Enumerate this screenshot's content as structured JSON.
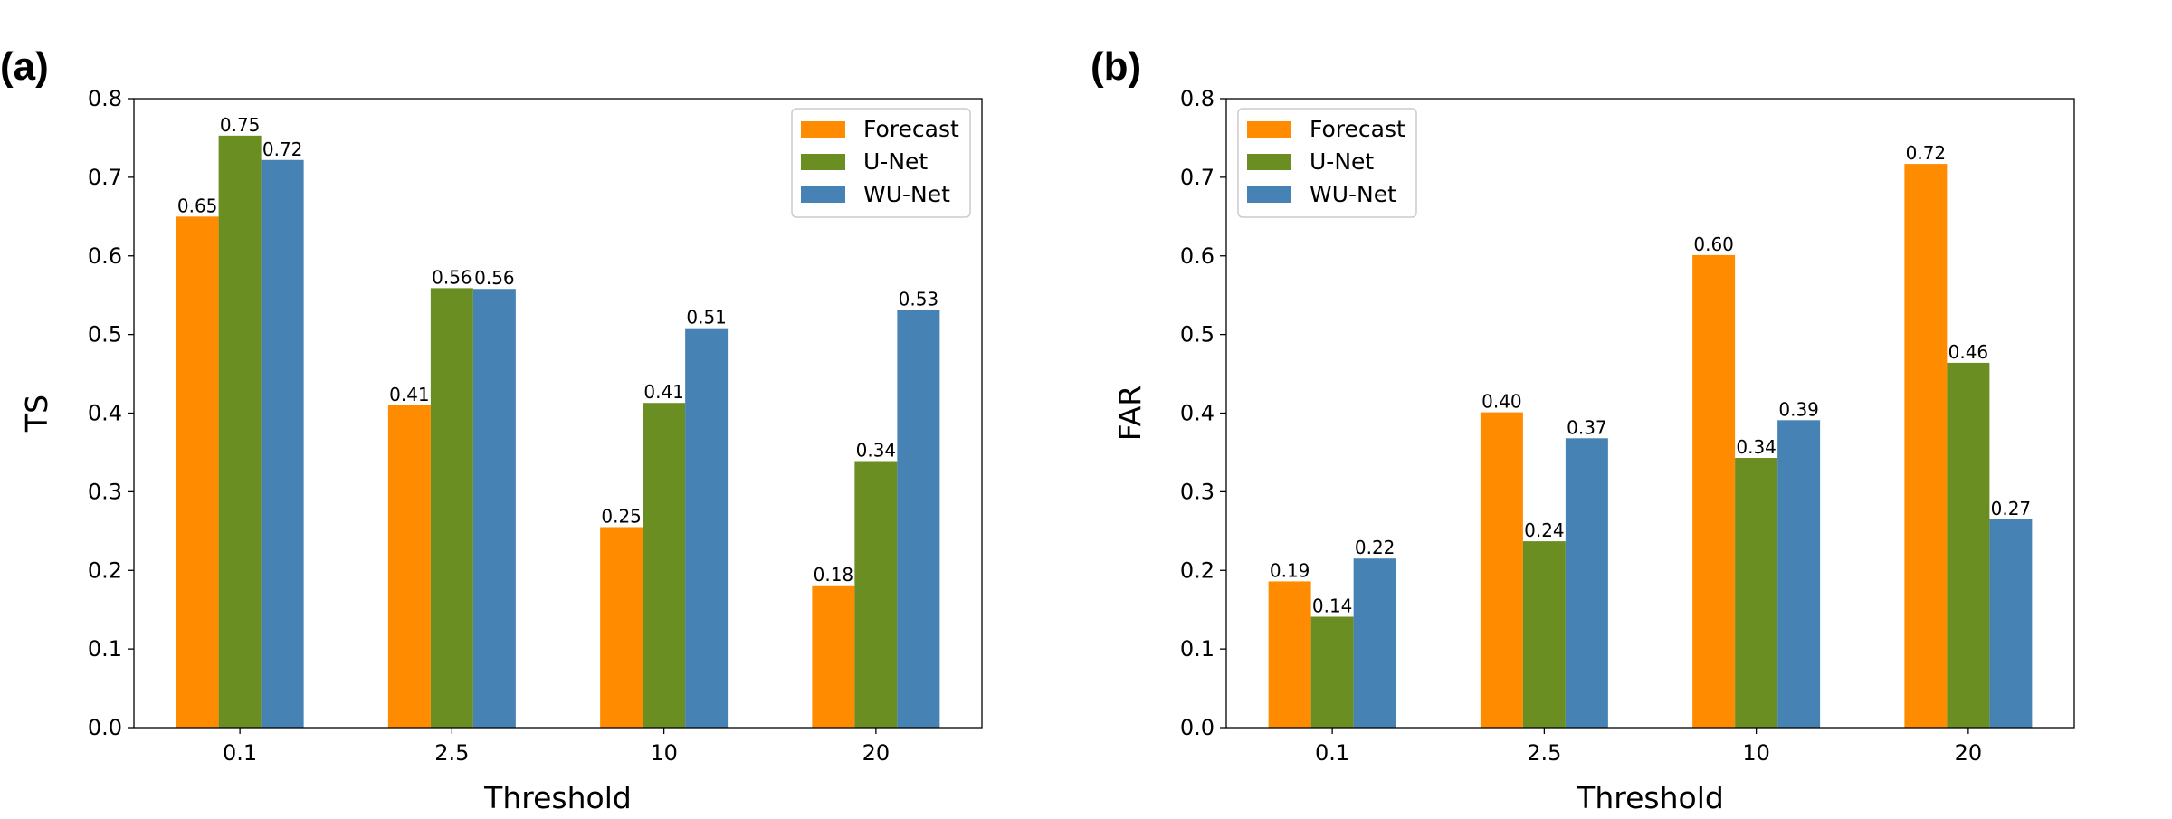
{
  "colors": {
    "Forecast": "#ff8c00",
    "U-Net": "#6b8e23",
    "WU-Net": "#4682b4"
  },
  "chart_data": [
    {
      "type": "bar",
      "panel_label": "(a)",
      "categories": [
        "0.1",
        "2.5",
        "10",
        "20"
      ],
      "series": [
        {
          "name": "Forecast",
          "values": [
            0.65,
            0.41,
            0.255,
            0.181
          ],
          "labels": [
            "0.65",
            "0.41",
            "0.25",
            "0.18"
          ]
        },
        {
          "name": "U-Net",
          "values": [
            0.753,
            0.559,
            0.413,
            0.339
          ],
          "labels": [
            "0.75",
            "0.56",
            "0.41",
            "0.34"
          ]
        },
        {
          "name": "WU-Net",
          "values": [
            0.722,
            0.558,
            0.508,
            0.531
          ],
          "labels": [
            "0.72",
            "0.56",
            "0.51",
            "0.53"
          ]
        }
      ],
      "xlabel": "Threshold",
      "ylabel": "TS",
      "ylim": [
        0,
        0.8
      ],
      "yticks": [
        "0.0",
        "0.1",
        "0.2",
        "0.3",
        "0.4",
        "0.5",
        "0.6",
        "0.7",
        "0.8"
      ],
      "legend_position": "upper right"
    },
    {
      "type": "bar",
      "panel_label": "(b)",
      "categories": [
        "0.1",
        "2.5",
        "10",
        "20"
      ],
      "series": [
        {
          "name": "Forecast",
          "values": [
            0.186,
            0.401,
            0.601,
            0.717
          ],
          "labels": [
            "0.19",
            "0.40",
            "0.60",
            "0.72"
          ]
        },
        {
          "name": "U-Net",
          "values": [
            0.141,
            0.237,
            0.343,
            0.464
          ],
          "labels": [
            "0.14",
            "0.24",
            "0.34",
            "0.46"
          ]
        },
        {
          "name": "WU-Net",
          "values": [
            0.215,
            0.368,
            0.391,
            0.265
          ],
          "labels": [
            "0.22",
            "0.37",
            "0.39",
            "0.27"
          ]
        }
      ],
      "xlabel": "Threshold",
      "ylabel": "FAR",
      "ylim": [
        0,
        0.8
      ],
      "yticks": [
        "0.0",
        "0.1",
        "0.2",
        "0.3",
        "0.4",
        "0.5",
        "0.6",
        "0.7",
        "0.8"
      ],
      "legend_position": "upper left"
    }
  ]
}
